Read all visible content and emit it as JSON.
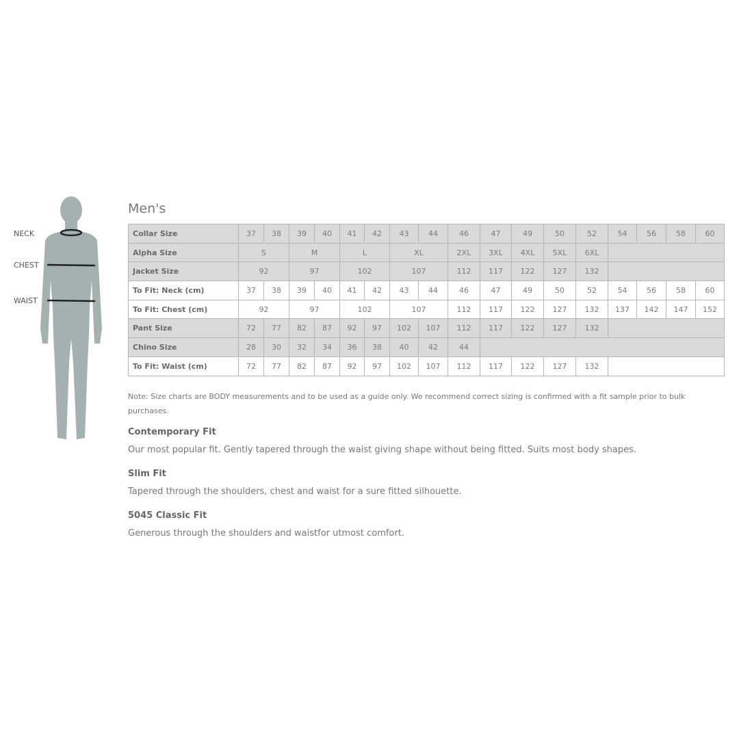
{
  "figure": {
    "labels": {
      "neck": "NECK",
      "chest": "CHEST",
      "waist": "WAIST"
    },
    "silhouette_color": "#a4b1b0"
  },
  "title": "Men's",
  "table": {
    "colors": {
      "grey_row": "#dadada",
      "white_row": "#ffffff",
      "border": "#b5b5b5"
    },
    "rows": [
      {
        "label": "Collar Size",
        "style": "grey",
        "cells": [
          {
            "v": "37"
          },
          {
            "v": "38"
          },
          {
            "v": "39"
          },
          {
            "v": "40"
          },
          {
            "v": "41"
          },
          {
            "v": "42"
          },
          {
            "v": "43"
          },
          {
            "v": "44"
          },
          {
            "v": "46"
          },
          {
            "v": "47"
          },
          {
            "v": "49"
          },
          {
            "v": "50"
          },
          {
            "v": "52"
          },
          {
            "v": "54"
          },
          {
            "v": "56"
          },
          {
            "v": "58"
          },
          {
            "v": "60"
          }
        ]
      },
      {
        "label": "Alpha Size",
        "style": "grey",
        "cells": [
          {
            "v": "S",
            "span": 2
          },
          {
            "v": "M",
            "span": 2
          },
          {
            "v": "L",
            "span": 2
          },
          {
            "v": "XL",
            "span": 2
          },
          {
            "v": "2XL"
          },
          {
            "v": "3XL"
          },
          {
            "v": "4XL"
          },
          {
            "v": "5XL"
          },
          {
            "v": "6XL"
          },
          {
            "v": "",
            "span": 4
          }
        ]
      },
      {
        "label": "Jacket Size",
        "style": "grey",
        "cells": [
          {
            "v": "92",
            "span": 2
          },
          {
            "v": "97",
            "span": 2
          },
          {
            "v": "102",
            "span": 2
          },
          {
            "v": "107",
            "span": 2
          },
          {
            "v": "112"
          },
          {
            "v": "117"
          },
          {
            "v": "122"
          },
          {
            "v": "127"
          },
          {
            "v": "132"
          },
          {
            "v": "",
            "span": 4
          }
        ]
      },
      {
        "label": "To Fit: Neck (cm)",
        "style": "white",
        "cells": [
          {
            "v": "37"
          },
          {
            "v": "38"
          },
          {
            "v": "39"
          },
          {
            "v": "40"
          },
          {
            "v": "41"
          },
          {
            "v": "42"
          },
          {
            "v": "43"
          },
          {
            "v": "44"
          },
          {
            "v": "46"
          },
          {
            "v": "47"
          },
          {
            "v": "49"
          },
          {
            "v": "50"
          },
          {
            "v": "52"
          },
          {
            "v": "54"
          },
          {
            "v": "56"
          },
          {
            "v": "58"
          },
          {
            "v": "60"
          }
        ]
      },
      {
        "label": "To Fit: Chest (cm)",
        "style": "white",
        "cells": [
          {
            "v": "92",
            "span": 2
          },
          {
            "v": "97",
            "span": 2
          },
          {
            "v": "102",
            "span": 2
          },
          {
            "v": "107",
            "span": 2
          },
          {
            "v": "112"
          },
          {
            "v": "117"
          },
          {
            "v": "122"
          },
          {
            "v": "127"
          },
          {
            "v": "132"
          },
          {
            "v": "137"
          },
          {
            "v": "142"
          },
          {
            "v": "147"
          },
          {
            "v": "152"
          }
        ]
      },
      {
        "label": "Pant Size",
        "style": "grey",
        "cells": [
          {
            "v": "72"
          },
          {
            "v": "77"
          },
          {
            "v": "82"
          },
          {
            "v": "87"
          },
          {
            "v": "92"
          },
          {
            "v": "97"
          },
          {
            "v": "102"
          },
          {
            "v": "107"
          },
          {
            "v": "112"
          },
          {
            "v": "117"
          },
          {
            "v": "122"
          },
          {
            "v": "127"
          },
          {
            "v": "132"
          },
          {
            "v": "",
            "span": 4
          }
        ]
      },
      {
        "label": "Chino Size",
        "style": "grey",
        "cells": [
          {
            "v": "28"
          },
          {
            "v": "30"
          },
          {
            "v": "32"
          },
          {
            "v": "34"
          },
          {
            "v": "36"
          },
          {
            "v": "38"
          },
          {
            "v": "40"
          },
          {
            "v": "42"
          },
          {
            "v": "44"
          },
          {
            "v": "",
            "span": 8
          }
        ]
      },
      {
        "label": "To Fit: Waist (cm)",
        "style": "white",
        "cells": [
          {
            "v": "72"
          },
          {
            "v": "77"
          },
          {
            "v": "82"
          },
          {
            "v": "87"
          },
          {
            "v": "92"
          },
          {
            "v": "97"
          },
          {
            "v": "102"
          },
          {
            "v": "107"
          },
          {
            "v": "112"
          },
          {
            "v": "117"
          },
          {
            "v": "122"
          },
          {
            "v": "127"
          },
          {
            "v": "132"
          },
          {
            "v": "",
            "span": 4
          }
        ]
      }
    ]
  },
  "note": "Note: Size charts are BODY measurements and to be used as a guide only. We recommend correct sizing is confirmed with a fit sample prior to bulk purchases.",
  "fits": [
    {
      "name": "Contemporary Fit",
      "description": "Our most popular fit. Gently tapered through the waist giving shape without being fitted. Suits most body shapes."
    },
    {
      "name": "Slim Fit",
      "description": "Tapered through the shoulders, chest and waist for a sure fitted silhouette."
    },
    {
      "name": "5045 Classic Fit",
      "description": "Generous through the shoulders and waistfor utmost comfort."
    }
  ]
}
